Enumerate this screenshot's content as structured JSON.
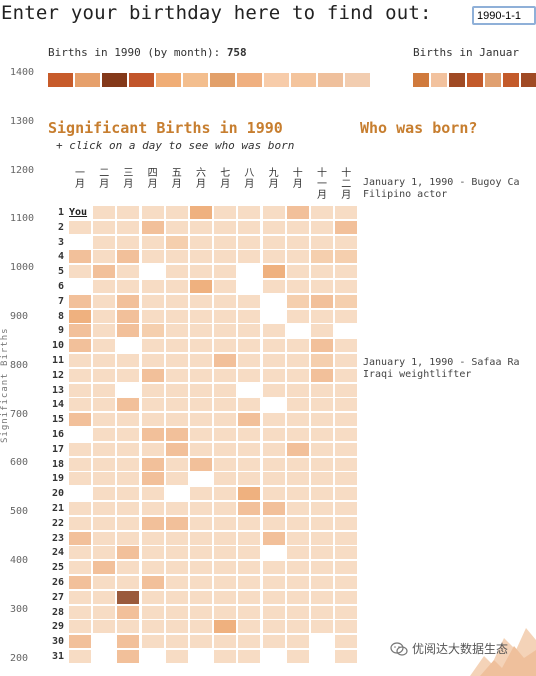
{
  "prompt": "Enter your birthday here to find out:",
  "birthday_input": {
    "value": "1990-1-1"
  },
  "month_panel": {
    "label_prefix": "Births in 1990 (by month):",
    "total": "758",
    "right_label": "Births in Januar",
    "strip_colors": [
      "#c75b2a",
      "#e6a06b",
      "#84391a",
      "#c2552a",
      "#f0ad75",
      "#f3be8e",
      "#e2a06a",
      "#f0b080",
      "#f7ccaa",
      "#f4c49c",
      "#efc09c",
      "#f2cdb0"
    ],
    "right_strip_colors": [
      "#d07a3c",
      "#f2c29e",
      "#a04a24",
      "#c35a2a",
      "#e0a070",
      "#c35a2a",
      "#a04a24"
    ]
  },
  "y_axis": {
    "title": "Significant Births",
    "ticks": [
      "1400",
      "1300",
      "1200",
      "1100",
      "1000",
      "900",
      "800",
      "700",
      "600",
      "500",
      "400",
      "300",
      "200"
    ]
  },
  "significant": {
    "title": "Significant Births in 1990",
    "hint": "+ click on a day to see who was born",
    "months": [
      "一月",
      "二月",
      "三月",
      "四月",
      "五月",
      "六月",
      "七月",
      "八月",
      "九月",
      "十月",
      "十一月",
      "十二月"
    ],
    "days": [
      "1",
      "2",
      "3",
      "4",
      "5",
      "6",
      "7",
      "8",
      "9",
      "10",
      "11",
      "12",
      "13",
      "14",
      "15",
      "16",
      "17",
      "18",
      "19",
      "20",
      "21",
      "22",
      "23",
      "24",
      "25",
      "26",
      "27",
      "28",
      "29",
      "30",
      "31"
    ],
    "selected_label": "You",
    "palette": [
      "#ffffff",
      "#f7dcc4",
      "#f5cfae",
      "#f2c09a",
      "#efb17f",
      "#e9985f",
      "#9a5a3c"
    ],
    "levels": [
      [
        0,
        1,
        1,
        1,
        1,
        4,
        1,
        1,
        1,
        3,
        1,
        1
      ],
      [
        1,
        1,
        1,
        3,
        1,
        1,
        1,
        1,
        1,
        1,
        1,
        3
      ],
      [
        0,
        1,
        1,
        1,
        2,
        1,
        1,
        1,
        1,
        1,
        1,
        1
      ],
      [
        3,
        1,
        3,
        1,
        1,
        1,
        1,
        1,
        1,
        1,
        2,
        2
      ],
      [
        1,
        3,
        1,
        0,
        1,
        1,
        1,
        0,
        4,
        1,
        1,
        1
      ],
      [
        0,
        1,
        1,
        1,
        1,
        4,
        1,
        0,
        1,
        1,
        1,
        1
      ],
      [
        3,
        1,
        3,
        1,
        1,
        1,
        1,
        1,
        0,
        2,
        3,
        2
      ],
      [
        4,
        1,
        3,
        1,
        1,
        1,
        1,
        1,
        0,
        1,
        1,
        1
      ],
      [
        3,
        1,
        3,
        2,
        1,
        1,
        1,
        1,
        1,
        0,
        1,
        0
      ],
      [
        3,
        1,
        0,
        1,
        1,
        1,
        1,
        1,
        1,
        1,
        3,
        1
      ],
      [
        1,
        1,
        1,
        1,
        1,
        1,
        3,
        1,
        1,
        1,
        2,
        1
      ],
      [
        1,
        1,
        1,
        3,
        1,
        1,
        1,
        1,
        1,
        1,
        3,
        1
      ],
      [
        1,
        1,
        0,
        1,
        1,
        1,
        1,
        0,
        1,
        1,
        1,
        1
      ],
      [
        1,
        1,
        3,
        1,
        1,
        1,
        1,
        1,
        0,
        1,
        1,
        1
      ],
      [
        3,
        1,
        1,
        1,
        1,
        1,
        1,
        3,
        1,
        1,
        1,
        1
      ],
      [
        0,
        1,
        1,
        3,
        3,
        1,
        1,
        1,
        1,
        1,
        1,
        1
      ],
      [
        1,
        1,
        1,
        1,
        3,
        1,
        1,
        1,
        1,
        3,
        1,
        1
      ],
      [
        1,
        1,
        1,
        3,
        1,
        3,
        1,
        1,
        1,
        1,
        1,
        1
      ],
      [
        1,
        1,
        1,
        3,
        1,
        0,
        1,
        1,
        1,
        1,
        1,
        1
      ],
      [
        0,
        1,
        1,
        1,
        0,
        1,
        1,
        4,
        1,
        1,
        1,
        1
      ],
      [
        1,
        1,
        1,
        1,
        1,
        1,
        1,
        3,
        3,
        1,
        1,
        1
      ],
      [
        1,
        1,
        1,
        3,
        3,
        1,
        1,
        1,
        1,
        1,
        1,
        1
      ],
      [
        3,
        1,
        1,
        1,
        1,
        1,
        1,
        1,
        3,
        1,
        1,
        1
      ],
      [
        1,
        1,
        3,
        1,
        1,
        1,
        1,
        1,
        0,
        1,
        1,
        1
      ],
      [
        1,
        3,
        1,
        1,
        1,
        1,
        1,
        1,
        1,
        1,
        1,
        1
      ],
      [
        3,
        1,
        1,
        3,
        1,
        1,
        1,
        1,
        1,
        1,
        1,
        1
      ],
      [
        1,
        1,
        6,
        1,
        1,
        1,
        1,
        1,
        1,
        1,
        1,
        1
      ],
      [
        1,
        1,
        3,
        1,
        1,
        1,
        1,
        1,
        1,
        1,
        1,
        1
      ],
      [
        1,
        1,
        1,
        1,
        1,
        1,
        4,
        1,
        1,
        1,
        1,
        1
      ],
      [
        3,
        0,
        3,
        1,
        1,
        1,
        1,
        1,
        1,
        1,
        0,
        1
      ],
      [
        1,
        0,
        3,
        0,
        1,
        0,
        1,
        1,
        0,
        1,
        0,
        1
      ]
    ]
  },
  "who_was_born": {
    "title": "Who was born?",
    "entries": [
      {
        "line1": "January 1, 1990 - Bugoy Ca",
        "line2": "Filipino actor"
      },
      {
        "line1": "January 1, 1990 - Safaa Ra",
        "line2": "Iraqi weightlifter"
      }
    ]
  },
  "watermark": {
    "text": "优阅达大数据生态",
    "icon": "wechat-icon"
  }
}
